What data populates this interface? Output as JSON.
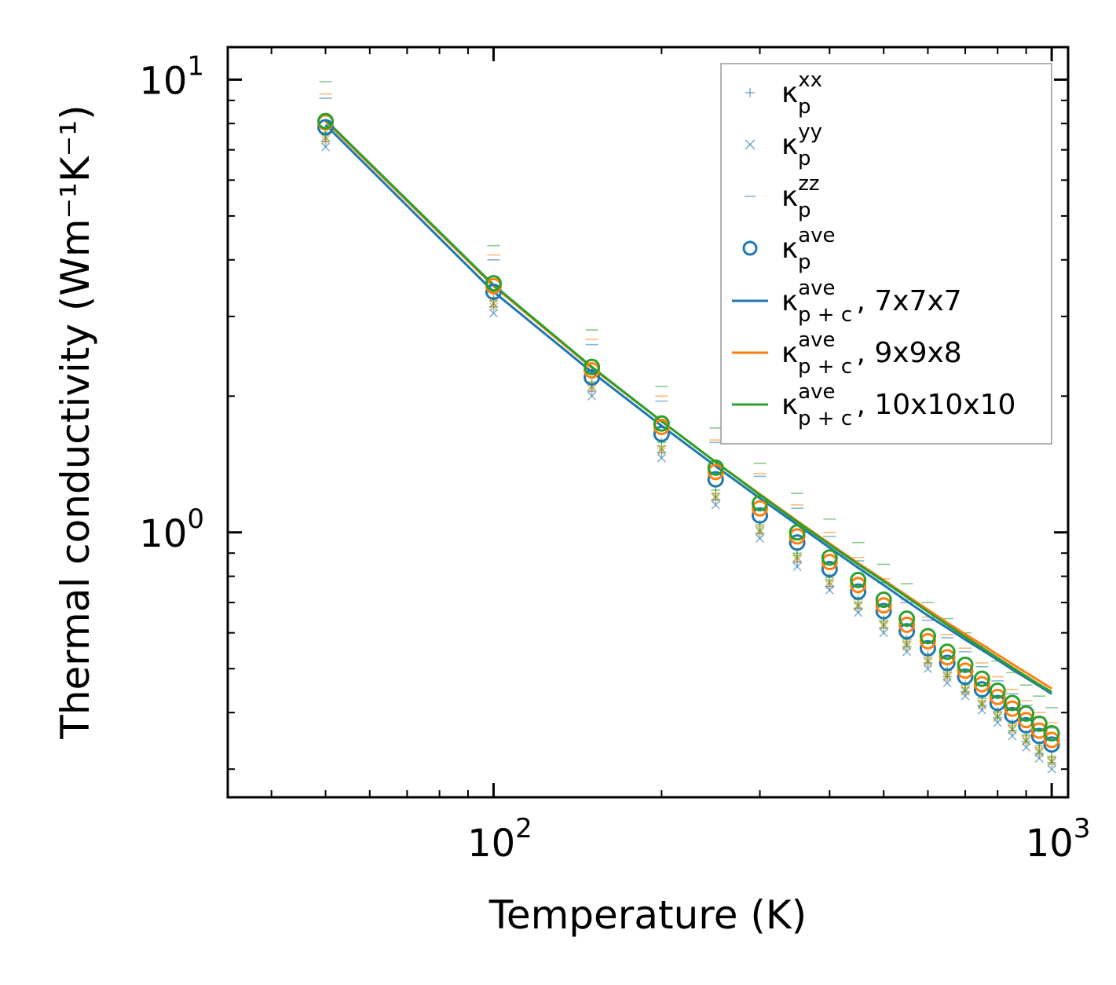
{
  "chart_data": {
    "type": "line",
    "title": "",
    "xlabel": "Temperature (K)",
    "ylabel": "Thermal conductivity (Wm⁻¹K⁻¹)",
    "xscale": "log",
    "yscale": "log",
    "xlim": [
      33.4,
      1070
    ],
    "ylim": [
      0.26,
      11.8
    ],
    "xticks": [
      {
        "base": "10",
        "exp": "2"
      },
      {
        "base": "10",
        "exp": "3"
      }
    ],
    "yticks": [
      {
        "base": "10",
        "exp": "0"
      },
      {
        "base": "10",
        "exp": "1"
      }
    ],
    "temperatures": [
      50,
      100,
      150,
      200,
      250,
      300,
      350,
      400,
      450,
      500,
      550,
      600,
      650,
      700,
      750,
      800,
      850,
      900,
      950,
      1000
    ],
    "colors": {
      "blue": "#1f77b4",
      "orange": "#ff7f0e",
      "green": "#2ca02c"
    },
    "series": [
      {
        "name": "7x7x7 κ_p xx",
        "color": "blue",
        "marker": "plus",
        "values": [
          7.3,
          3.15,
          2.05,
          1.5,
          1.18,
          0.995,
          0.86,
          0.76,
          0.68,
          0.615,
          0.56,
          0.515,
          0.48,
          0.445,
          0.415,
          0.39,
          0.365,
          0.345,
          0.325,
          0.31
        ]
      },
      {
        "name": "7x7x7 κ_p yy",
        "color": "blue",
        "marker": "x",
        "values": [
          7.1,
          3.05,
          2.0,
          1.46,
          1.15,
          0.97,
          0.84,
          0.745,
          0.665,
          0.6,
          0.545,
          0.5,
          0.465,
          0.435,
          0.405,
          0.38,
          0.355,
          0.335,
          0.317,
          0.3
        ]
      },
      {
        "name": "7x7x7 κ_p zz",
        "color": "blue",
        "marker": "hline",
        "values": [
          9.1,
          4.0,
          2.6,
          1.95,
          1.58,
          1.33,
          1.13,
          0.98,
          0.865,
          0.775,
          0.7,
          0.64,
          0.585,
          0.545,
          0.505,
          0.47,
          0.44,
          0.415,
          0.39,
          0.37
        ]
      },
      {
        "name": "7x7x7 κ_p ave",
        "color": "blue",
        "marker": "circle",
        "values": [
          7.85,
          3.4,
          2.2,
          1.65,
          1.31,
          1.09,
          0.95,
          0.83,
          0.74,
          0.67,
          0.605,
          0.555,
          0.515,
          0.48,
          0.45,
          0.42,
          0.395,
          0.375,
          0.355,
          0.34
        ]
      },
      {
        "name": "9x9x8 κ_p xx",
        "color": "orange",
        "marker": "plus",
        "values": [
          7.55,
          3.25,
          2.12,
          1.55,
          1.22,
          1.03,
          0.89,
          0.785,
          0.7,
          0.635,
          0.575,
          0.53,
          0.49,
          0.455,
          0.425,
          0.4,
          0.375,
          0.355,
          0.335,
          0.318
        ]
      },
      {
        "name": "9x9x8 κ_p yy",
        "color": "orange",
        "marker": "x",
        "values": [
          7.35,
          3.15,
          2.07,
          1.51,
          1.19,
          1.0,
          0.87,
          0.765,
          0.685,
          0.62,
          0.56,
          0.515,
          0.478,
          0.445,
          0.415,
          0.39,
          0.366,
          0.345,
          0.326,
          0.31
        ]
      },
      {
        "name": "9x9x8 κ_p zz",
        "color": "orange",
        "marker": "hline",
        "values": [
          9.3,
          4.1,
          2.67,
          2.0,
          1.6,
          1.35,
          1.15,
          1.0,
          0.88,
          0.79,
          0.71,
          0.65,
          0.595,
          0.555,
          0.515,
          0.48,
          0.45,
          0.425,
          0.4,
          0.38
        ]
      },
      {
        "name": "9x9x8 κ_p ave",
        "color": "orange",
        "marker": "circle",
        "values": [
          8.05,
          3.5,
          2.28,
          1.71,
          1.36,
          1.13,
          0.98,
          0.86,
          0.765,
          0.69,
          0.625,
          0.575,
          0.53,
          0.495,
          0.462,
          0.433,
          0.408,
          0.385,
          0.365,
          0.348
        ]
      },
      {
        "name": "10x10x10 κ_p xx",
        "color": "green",
        "marker": "plus",
        "values": [
          7.65,
          3.3,
          2.15,
          1.58,
          1.24,
          1.04,
          0.9,
          0.795,
          0.71,
          0.64,
          0.58,
          0.535,
          0.495,
          0.46,
          0.43,
          0.402,
          0.378,
          0.357,
          0.338,
          0.32
        ]
      },
      {
        "name": "10x10x10 κ_p yy",
        "color": "green",
        "marker": "x",
        "values": [
          7.45,
          3.2,
          2.1,
          1.53,
          1.2,
          1.01,
          0.88,
          0.775,
          0.69,
          0.625,
          0.565,
          0.52,
          0.482,
          0.448,
          0.418,
          0.392,
          0.368,
          0.347,
          0.328,
          0.312
        ]
      },
      {
        "name": "10x10x10 κ_p zz",
        "color": "green",
        "marker": "hline",
        "values": [
          9.9,
          4.3,
          2.8,
          2.1,
          1.7,
          1.42,
          1.22,
          1.07,
          0.95,
          0.85,
          0.77,
          0.7,
          0.645,
          0.6,
          0.56,
          0.52,
          0.49,
          0.46,
          0.435,
          0.41
        ]
      },
      {
        "name": "10x10x10 κ_p ave",
        "color": "green",
        "marker": "circle",
        "values": [
          8.1,
          3.55,
          2.32,
          1.74,
          1.39,
          1.16,
          1.0,
          0.88,
          0.785,
          0.71,
          0.645,
          0.59,
          0.545,
          0.51,
          0.475,
          0.447,
          0.42,
          0.398,
          0.378,
          0.36
        ]
      },
      {
        "name": "κ_p+c ave, 7x7x7",
        "color": "blue",
        "marker": "line",
        "values": [
          7.95,
          3.4,
          2.26,
          1.72,
          1.4,
          1.19,
          1.04,
          0.925,
          0.835,
          0.765,
          0.705,
          0.655,
          0.615,
          0.58,
          0.55,
          0.523,
          0.498,
          0.477,
          0.458,
          0.44
        ]
      },
      {
        "name": "κ_p+c ave, 9x9x8",
        "color": "orange",
        "marker": "line",
        "values": [
          8.1,
          3.5,
          2.31,
          1.76,
          1.43,
          1.215,
          1.06,
          0.945,
          0.855,
          0.785,
          0.725,
          0.675,
          0.632,
          0.596,
          0.565,
          0.537,
          0.512,
          0.49,
          0.47,
          0.452
        ]
      },
      {
        "name": "κ_p+c ave, 10x10x10",
        "color": "green",
        "marker": "line",
        "values": [
          8.15,
          3.52,
          2.32,
          1.76,
          1.43,
          1.21,
          1.055,
          0.94,
          0.85,
          0.78,
          0.72,
          0.668,
          0.625,
          0.588,
          0.556,
          0.528,
          0.503,
          0.481,
          0.461,
          0.444
        ]
      }
    ],
    "legend": {
      "placement": "top-right",
      "entries": [
        {
          "marker": "plus",
          "color": "blue",
          "sym": "κ",
          "sub": "p",
          "sup": "xx",
          "label": ""
        },
        {
          "marker": "x",
          "color": "blue",
          "sym": "κ",
          "sub": "p",
          "sup": "yy",
          "label": ""
        },
        {
          "marker": "hline",
          "color": "blue",
          "sym": "κ",
          "sub": "p",
          "sup": "zz",
          "label": ""
        },
        {
          "marker": "circle",
          "color": "blue",
          "sym": "κ",
          "sub": "p",
          "sup": "ave",
          "label": ""
        },
        {
          "marker": "line",
          "color": "blue",
          "sym": "κ",
          "sub": "p + c",
          "sup": "ave",
          "label": ", 7x7x7"
        },
        {
          "marker": "line",
          "color": "orange",
          "sym": "κ",
          "sub": "p + c",
          "sup": "ave",
          "label": ", 9x9x8"
        },
        {
          "marker": "line",
          "color": "green",
          "sym": "κ",
          "sub": "p + c",
          "sup": "ave",
          "label": ", 10x10x10"
        }
      ]
    }
  }
}
